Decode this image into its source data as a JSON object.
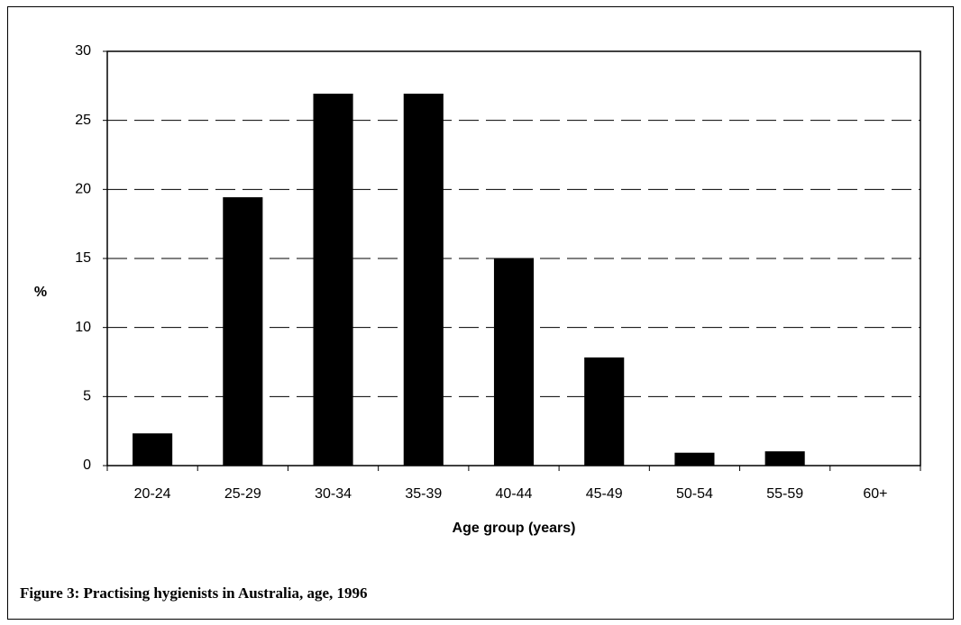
{
  "chart_data": {
    "type": "bar",
    "caption": "Figure 3: Practising hygienists in Australia, age, 1996",
    "x_label": "Age group (years)",
    "y_label": "%",
    "categories": [
      "20-24",
      "25-29",
      "30-34",
      "35-39",
      "40-44",
      "45-49",
      "50-54",
      "55-59",
      "60+"
    ],
    "values": [
      2.3,
      19.4,
      26.9,
      26.9,
      15.0,
      7.8,
      0.9,
      1.0,
      0
    ],
    "color": "#000000",
    "ylim": [
      0,
      30
    ],
    "yticks": [
      0,
      5,
      10,
      15,
      20,
      25,
      30
    ],
    "grid": true
  }
}
